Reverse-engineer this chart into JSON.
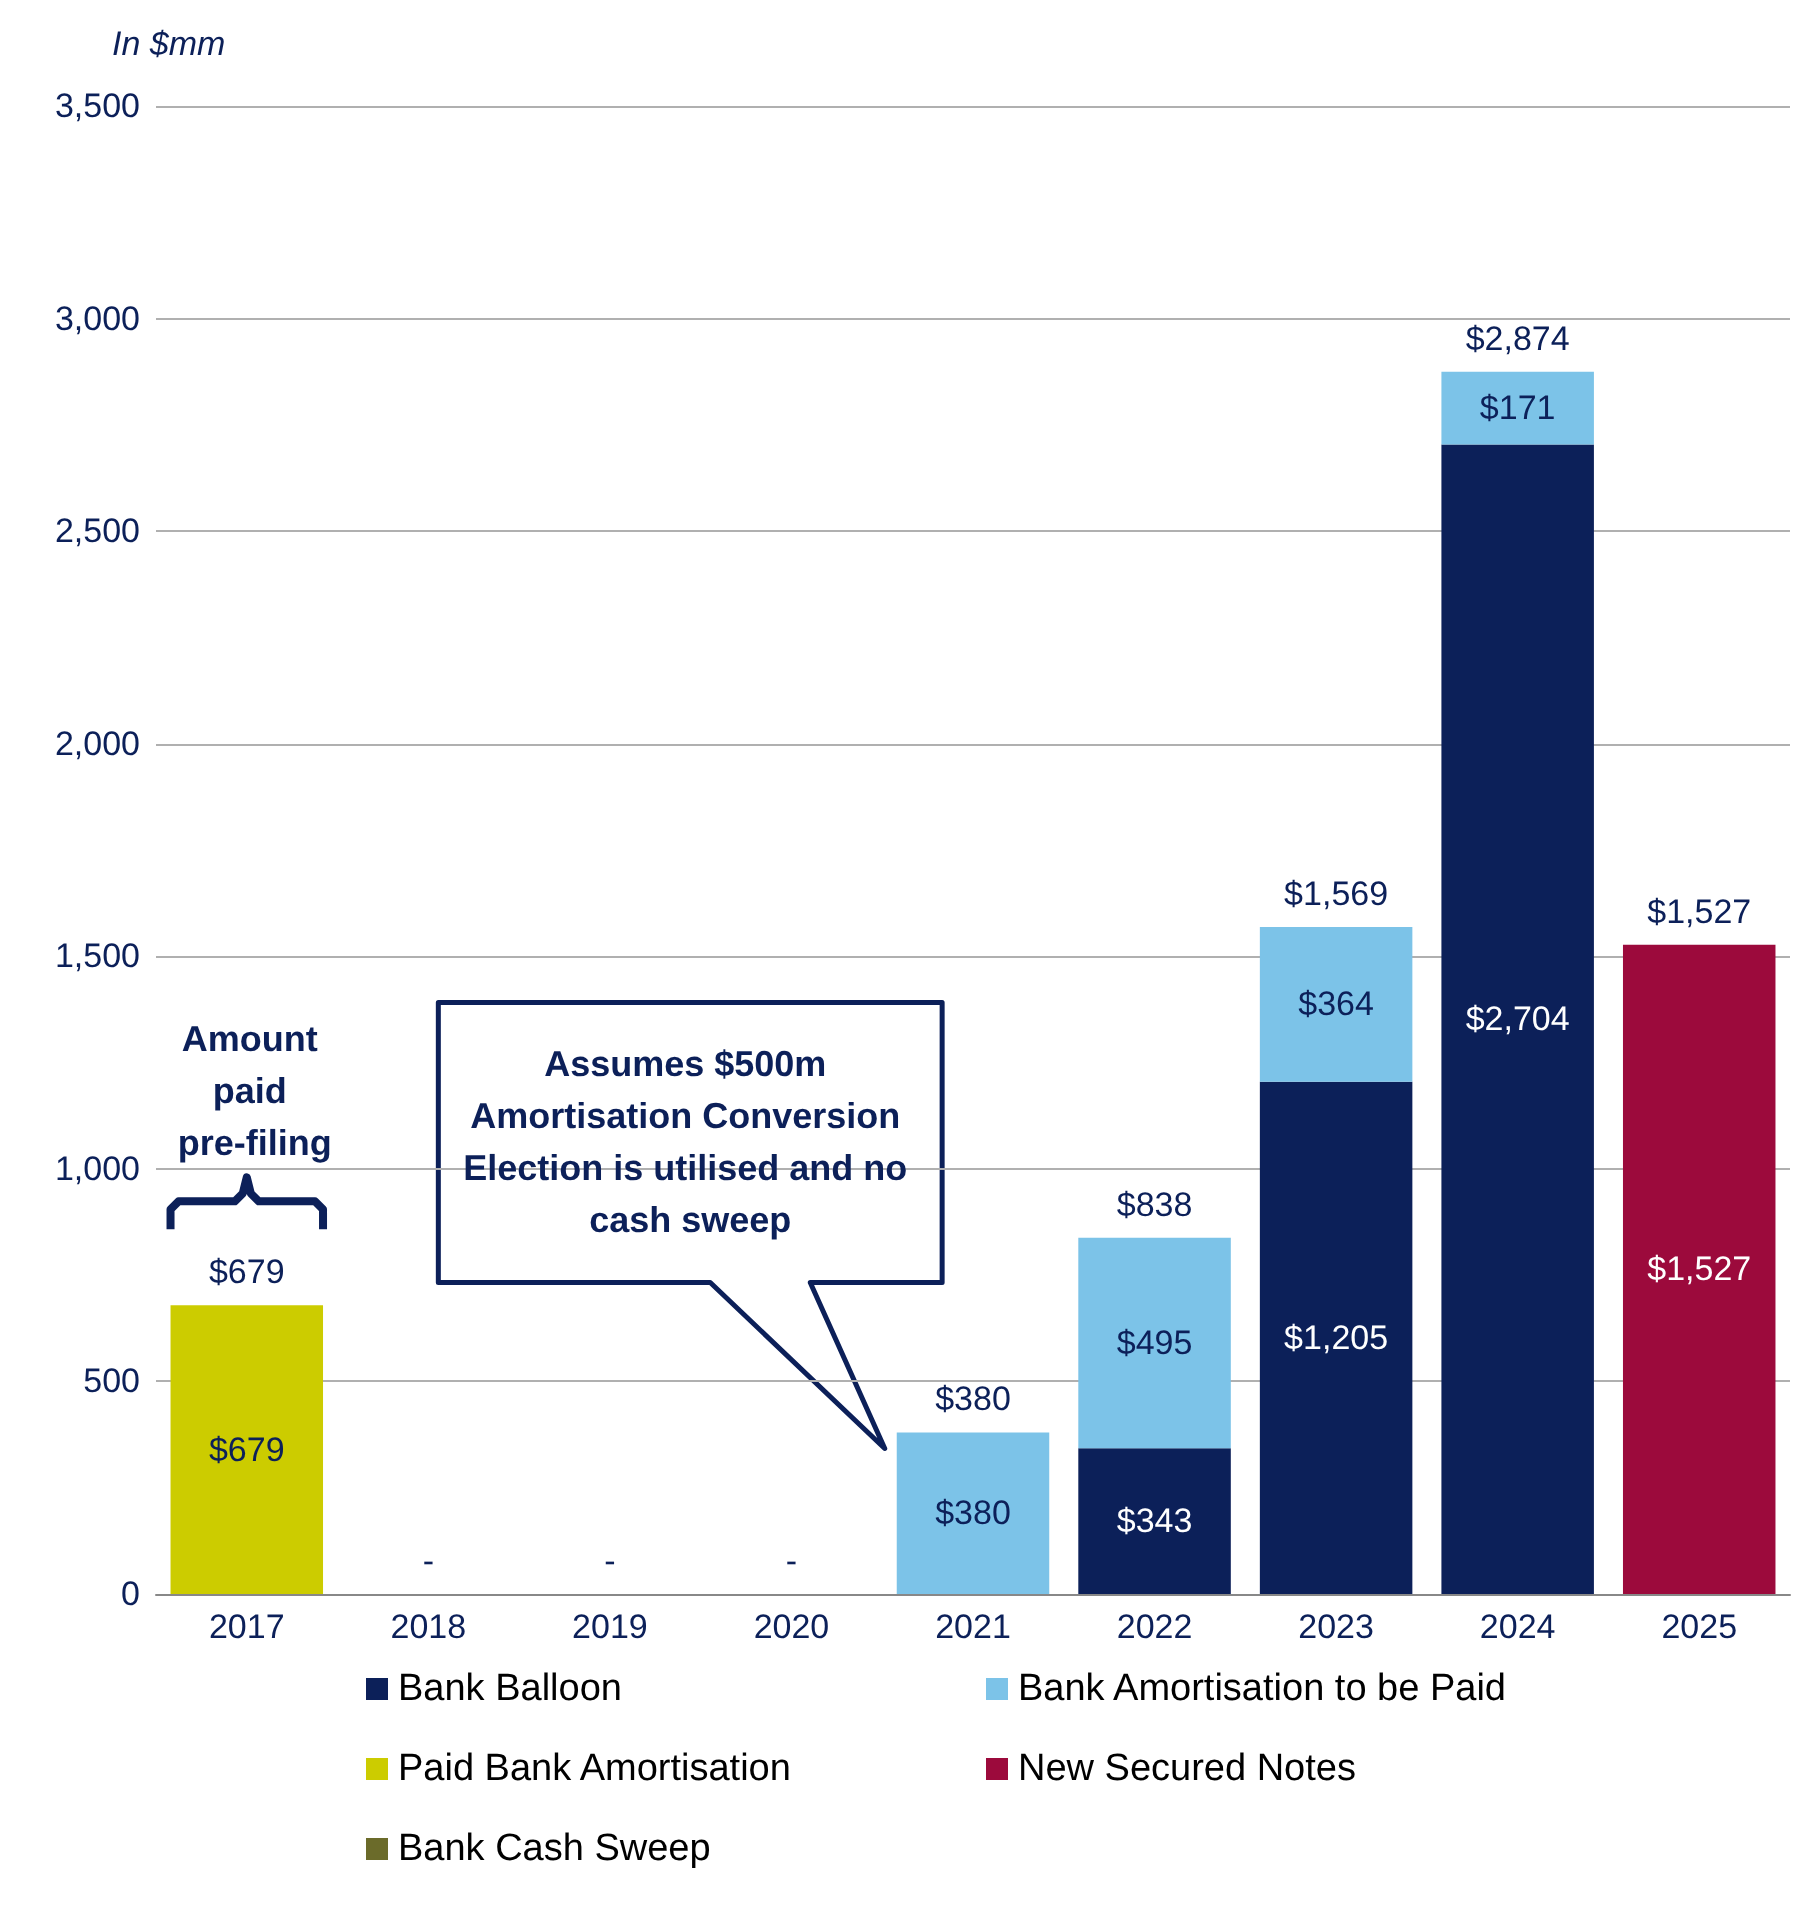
{
  "chart_data": {
    "type": "bar",
    "stacked": true,
    "ylabel": "In $mm",
    "categories": [
      "2017",
      "2018",
      "2019",
      "2020",
      "2021",
      "2022",
      "2023",
      "2024",
      "2025"
    ],
    "series": [
      {
        "name": "Bank Balloon",
        "color": "#0c2059",
        "values": [
          null,
          null,
          null,
          null,
          null,
          343,
          1205,
          2704,
          null
        ],
        "value_labels": [
          null,
          null,
          null,
          null,
          null,
          "$343",
          "$1,205",
          "$2,704",
          null
        ]
      },
      {
        "name": "Bank Amortisation to be Paid",
        "color": "#7cc3e8",
        "values": [
          null,
          null,
          null,
          null,
          380,
          495,
          364,
          171,
          null
        ],
        "value_labels": [
          null,
          null,
          null,
          null,
          "$380",
          "$495",
          "$364",
          "$171",
          null
        ]
      },
      {
        "name": "Paid Bank Amortisation",
        "color": "#cccc00",
        "values": [
          679,
          null,
          null,
          null,
          null,
          null,
          null,
          null,
          null
        ],
        "value_labels": [
          "$679",
          null,
          null,
          null,
          null,
          null,
          null,
          null,
          null
        ]
      },
      {
        "name": "New Secured Notes",
        "color": "#9c0a3c",
        "values": [
          null,
          null,
          null,
          null,
          null,
          null,
          null,
          null,
          1527
        ],
        "value_labels": [
          null,
          null,
          null,
          null,
          null,
          null,
          null,
          null,
          "$1,527"
        ]
      },
      {
        "name": "Bank Cash Sweep",
        "color": "#6b6b2a",
        "values": [
          null,
          null,
          null,
          null,
          null,
          null,
          null,
          null,
          null
        ]
      }
    ],
    "totals": [
      "$679",
      "-",
      "-",
      "-",
      "$380",
      "$838",
      "$1,569",
      "$2,874",
      "$1,527"
    ],
    "ylim": [
      0,
      3500
    ],
    "yticks": [
      0,
      {
        "value": 500,
        "label": "500"
      },
      {
        "value": 1000,
        "label": "1,000"
      },
      {
        "value": 1500,
        "label": "1,500"
      },
      {
        "value": 2000,
        "label": "2,000"
      },
      {
        "value": 2500,
        "label": "2,500"
      },
      {
        "value": 3000,
        "label": "3,000"
      },
      {
        "value": 3500,
        "label": "3,500"
      }
    ],
    "grid": "y",
    "legend": "bottom",
    "annotations": [
      "Amount paid pre-filing",
      "Assumes $500m Amortisation Conversion Election is utilised and no cash sweep"
    ]
  }
}
